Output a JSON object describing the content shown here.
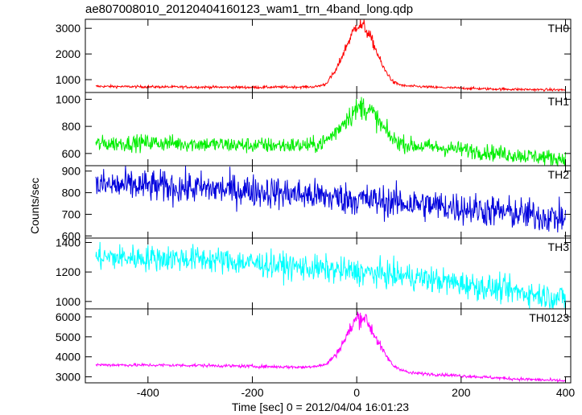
{
  "chart_data": {
    "type": "line",
    "title": "ae807008010_20120404160123_wam1_trn_4band_long.qdp",
    "xlabel": "Time [sec] 0 = 2012/04/04 16:01:23",
    "ylabel": "Counts/sec",
    "xlim": [
      -520,
      410
    ],
    "xticks": [
      -400,
      -200,
      0,
      200,
      400
    ],
    "x_start": -500,
    "x_end": 400,
    "grid": false,
    "series": [
      {
        "name": "TH0",
        "color": "#ff0000",
        "ylim": [
          500,
          3350
        ],
        "yticks": [
          1000,
          2000,
          3000
        ],
        "noise": 25,
        "profile": [
          [
            -500,
            740
          ],
          [
            -400,
            720
          ],
          [
            -200,
            700
          ],
          [
            -80,
            720
          ],
          [
            -60,
            820
          ],
          [
            -40,
            1350
          ],
          [
            -20,
            2300
          ],
          [
            0,
            3150
          ],
          [
            15,
            3050
          ],
          [
            30,
            2500
          ],
          [
            50,
            1500
          ],
          [
            70,
            900
          ],
          [
            90,
            760
          ],
          [
            150,
            700
          ],
          [
            250,
            640
          ],
          [
            350,
            610
          ],
          [
            400,
            600
          ]
        ]
      },
      {
        "name": "TH1",
        "color": "#00ee00",
        "ylim": [
          510,
          1050
        ],
        "yticks": [
          600,
          800,
          1000
        ],
        "noise": 30,
        "profile": [
          [
            -500,
            670
          ],
          [
            -400,
            680
          ],
          [
            -200,
            660
          ],
          [
            -80,
            660
          ],
          [
            -60,
            690
          ],
          [
            -40,
            760
          ],
          [
            -20,
            860
          ],
          [
            10,
            950
          ],
          [
            30,
            900
          ],
          [
            50,
            790
          ],
          [
            70,
            700
          ],
          [
            100,
            660
          ],
          [
            200,
            630
          ],
          [
            300,
            590
          ],
          [
            400,
            560
          ]
        ]
      },
      {
        "name": "TH2",
        "color": "#0000dd",
        "ylim": [
          590,
          925
        ],
        "yticks": [
          600,
          700,
          800,
          900
        ],
        "noise": 38,
        "profile": [
          [
            -500,
            835
          ],
          [
            -400,
            830
          ],
          [
            -200,
            810
          ],
          [
            0,
            770
          ],
          [
            200,
            730
          ],
          [
            400,
            680
          ]
        ]
      },
      {
        "name": "TH3",
        "color": "#00ffff",
        "ylim": [
          950,
          1430
        ],
        "yticks": [
          1000,
          1200,
          1400
        ],
        "noise": 45,
        "profile": [
          [
            -500,
            1300
          ],
          [
            -300,
            1290
          ],
          [
            -100,
            1230
          ],
          [
            100,
            1170
          ],
          [
            300,
            1070
          ],
          [
            400,
            1020
          ]
        ]
      },
      {
        "name": "TH0123",
        "color": "#ff00ff",
        "ylim": [
          2700,
          6400
        ],
        "yticks": [
          3000,
          4000,
          5000,
          6000
        ],
        "noise": 40,
        "profile": [
          [
            -500,
            3600
          ],
          [
            -300,
            3570
          ],
          [
            -100,
            3480
          ],
          [
            -60,
            3600
          ],
          [
            -40,
            4100
          ],
          [
            -20,
            5000
          ],
          [
            0,
            5950
          ],
          [
            15,
            6000
          ],
          [
            30,
            5300
          ],
          [
            50,
            4300
          ],
          [
            70,
            3550
          ],
          [
            100,
            3200
          ],
          [
            200,
            3050
          ],
          [
            300,
            2900
          ],
          [
            400,
            2800
          ]
        ]
      }
    ]
  }
}
